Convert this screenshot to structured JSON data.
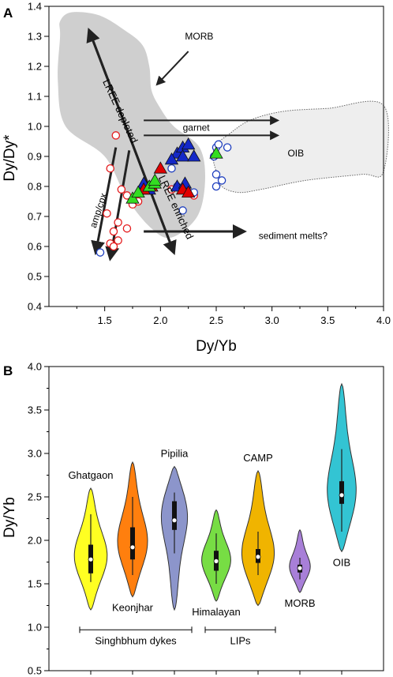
{
  "chart_data": [
    {
      "panel_label": "A",
      "type": "scatter",
      "xlabel": "Dy/Yb",
      "ylabel": "Dy/Dy*",
      "xlim": [
        1.0,
        4.0
      ],
      "ylim": [
        0.4,
        1.4
      ],
      "xticks": [
        "1.5",
        "2.0",
        "2.5",
        "3.0",
        "3.5",
        "4.0"
      ],
      "yticks": [
        "0.4",
        "0.5",
        "0.6",
        "0.7",
        "0.8",
        "0.9",
        "1.0",
        "1.1",
        "1.2",
        "1.3",
        "1.4"
      ],
      "fields": [
        {
          "label": "MORB",
          "color": "#cfcfcf",
          "outline": [
            [
              1.1,
              1.35
            ],
            [
              1.1,
              1.3
            ],
            [
              1.08,
              1.15
            ],
            [
              1.15,
              1.0
            ],
            [
              1.5,
              0.9
            ],
            [
              1.7,
              0.76
            ],
            [
              1.92,
              0.66
            ],
            [
              2.1,
              0.63
            ],
            [
              2.33,
              0.7
            ],
            [
              2.4,
              0.82
            ],
            [
              2.35,
              0.93
            ],
            [
              2.12,
              1.0
            ],
            [
              2.0,
              1.06
            ],
            [
              1.92,
              1.12
            ],
            [
              1.9,
              1.2
            ],
            [
              1.84,
              1.27
            ],
            [
              1.68,
              1.32
            ],
            [
              1.45,
              1.37
            ],
            [
              1.2,
              1.38
            ]
          ]
        },
        {
          "label": "OIB",
          "color": "#eeeeee",
          "outline": [
            [
              2.5,
              0.94
            ],
            [
              2.6,
              0.97
            ],
            [
              2.8,
              1.02
            ],
            [
              3.1,
              1.05
            ],
            [
              3.5,
              1.06
            ],
            [
              4.0,
              1.07
            ],
            [
              4.0,
              0.85
            ],
            [
              3.8,
              0.84
            ],
            [
              3.3,
              0.82
            ],
            [
              2.9,
              0.79
            ],
            [
              2.7,
              0.78
            ],
            [
              2.55,
              0.8
            ],
            [
              2.5,
              0.85
            ],
            [
              2.47,
              0.9
            ]
          ]
        }
      ],
      "arrows": [
        {
          "label": "LREE depleted",
          "from": [
            2.12,
            0.58
          ],
          "to": [
            1.36,
            1.32
          ]
        },
        {
          "label": "LREE enriched",
          "from": [
            1.36,
            1.32
          ],
          "to": [
            2.12,
            0.58
          ]
        },
        {
          "label": "MORB",
          "from": [
            2.25,
            1.25
          ],
          "to": [
            1.97,
            1.14
          ]
        },
        {
          "label": "garnet",
          "from": [
            1.85,
            1.02
          ],
          "to": [
            3.05,
            1.02
          ]
        },
        {
          "label": "",
          "from": [
            1.85,
            0.97
          ],
          "to": [
            3.05,
            0.97
          ]
        },
        {
          "label": "sediment melts?",
          "from": [
            1.85,
            0.65
          ],
          "to": [
            2.75,
            0.65
          ]
        },
        {
          "label": "amp/cpx",
          "from": [
            1.6,
            0.93
          ],
          "to": [
            1.42,
            0.58
          ]
        },
        {
          "label": "",
          "from": [
            1.72,
            0.92
          ],
          "to": [
            1.55,
            0.56
          ]
        }
      ],
      "series": [
        {
          "marker": "open-circle-red",
          "color": "#e41a1c",
          "points": [
            [
              1.6,
              0.97
            ],
            [
              1.55,
              0.86
            ],
            [
              1.65,
              0.79
            ],
            [
              1.7,
              0.77
            ],
            [
              1.75,
              0.74
            ],
            [
              1.8,
              0.75
            ],
            [
              1.52,
              0.71
            ],
            [
              1.62,
              0.68
            ],
            [
              1.7,
              0.66
            ],
            [
              1.58,
              0.65
            ],
            [
              1.62,
              0.62
            ],
            [
              1.55,
              0.61
            ],
            [
              1.58,
              0.6
            ],
            [
              1.82,
              0.78
            ],
            [
              2.1,
              0.79
            ],
            [
              2.25,
              0.78
            ],
            [
              2.3,
              0.77
            ]
          ]
        },
        {
          "marker": "open-circle-blue",
          "color": "#1f3fbf",
          "points": [
            [
              2.1,
              0.86
            ],
            [
              2.3,
              0.78
            ],
            [
              2.5,
              0.93
            ],
            [
              2.52,
              0.94
            ],
            [
              2.6,
              0.93
            ],
            [
              2.48,
              0.9
            ],
            [
              2.5,
              0.84
            ],
            [
              2.5,
              0.8
            ],
            [
              2.55,
              0.82
            ],
            [
              1.46,
              0.58
            ],
            [
              2.2,
              0.72
            ],
            [
              2.15,
              0.8
            ],
            [
              2.2,
              0.79
            ]
          ]
        },
        {
          "marker": "triangle-blue",
          "color": "#1428c8",
          "points": [
            [
              2.15,
              0.91
            ],
            [
              2.2,
              0.93
            ],
            [
              2.25,
              0.94
            ],
            [
              2.2,
              0.9
            ],
            [
              2.3,
              0.9
            ],
            [
              2.1,
              0.89
            ],
            [
              2.15,
              0.8
            ],
            [
              2.22,
              0.81
            ],
            [
              1.85,
              0.81
            ],
            [
              1.9,
              0.79
            ]
          ]
        },
        {
          "marker": "triangle-red",
          "color": "#e00000",
          "points": [
            [
              2.0,
              0.86
            ],
            [
              1.85,
              0.79
            ],
            [
              1.92,
              0.8
            ],
            [
              2.2,
              0.79
            ],
            [
              2.25,
              0.78
            ]
          ]
        },
        {
          "marker": "triangle-green",
          "color": "#33dd22",
          "points": [
            [
              1.75,
              0.76
            ],
            [
              1.8,
              0.78
            ],
            [
              1.9,
              0.8
            ],
            [
              1.95,
              0.81
            ],
            [
              1.95,
              0.82
            ],
            [
              2.5,
              0.91
            ]
          ]
        }
      ]
    },
    {
      "panel_label": "B",
      "type": "violin",
      "ylabel": "Dy/Yb",
      "ylim": [
        0.5,
        4.0
      ],
      "yticks": [
        "0.5",
        "1.0",
        "1.5",
        "2.0",
        "2.5",
        "3.0",
        "3.5",
        "4.0"
      ],
      "groups": [
        {
          "label": "Ghatgaon",
          "label_pos": "above",
          "color": "#ffff22",
          "min": 1.2,
          "max": 2.6,
          "q1": 1.62,
          "median": 1.78,
          "q3": 1.95,
          "wlo": 1.52,
          "whi": 2.3,
          "mode": 1.8,
          "wmax": 0.84
        },
        {
          "label": "Keonjhar",
          "label_pos": "below",
          "color": "#ff7f0e",
          "min": 1.35,
          "max": 2.9,
          "q1": 1.78,
          "median": 1.92,
          "q3": 2.15,
          "wlo": 1.6,
          "whi": 2.5,
          "mode": 1.95,
          "wmax": 0.78
        },
        {
          "label": "Pipilia",
          "label_pos": "above",
          "color": "#8c95cb",
          "min": 1.2,
          "max": 2.85,
          "q1": 2.12,
          "median": 2.23,
          "q3": 2.45,
          "wlo": 1.85,
          "whi": 2.55,
          "mode": 2.35,
          "wmax": 0.72
        },
        {
          "label": "Himalayan",
          "label_pos": "below",
          "color": "#77dd44",
          "min": 1.3,
          "max": 2.35,
          "q1": 1.65,
          "median": 1.76,
          "q3": 1.88,
          "wlo": 1.5,
          "whi": 2.08,
          "mode": 1.76,
          "wmax": 0.74
        },
        {
          "label": "CAMP",
          "label_pos": "above",
          "color": "#f0b400",
          "min": 1.25,
          "max": 2.8,
          "q1": 1.74,
          "median": 1.81,
          "q3": 1.9,
          "wlo": 1.6,
          "whi": 2.1,
          "mode": 1.8,
          "wmax": 0.86
        },
        {
          "label": "MORB",
          "label_pos": "below",
          "color": "#a87fd8",
          "min": 1.4,
          "max": 2.12,
          "q1": 1.63,
          "median": 1.68,
          "q3": 1.72,
          "wlo": 1.55,
          "whi": 1.8,
          "mode": 1.68,
          "wmax": 0.54
        },
        {
          "label": "OIB",
          "label_pos": "below",
          "color": "#33c4d3",
          "min": 1.87,
          "max": 3.8,
          "q1": 2.42,
          "median": 2.52,
          "q3": 2.68,
          "wlo": 2.1,
          "whi": 3.05,
          "mode": 2.5,
          "wmax": 0.78
        }
      ],
      "brackets": [
        {
          "label": "Singhbhum dykes",
          "from": 0,
          "to": 2
        },
        {
          "label": "LIPs",
          "from": 3,
          "to": 4
        }
      ]
    }
  ]
}
